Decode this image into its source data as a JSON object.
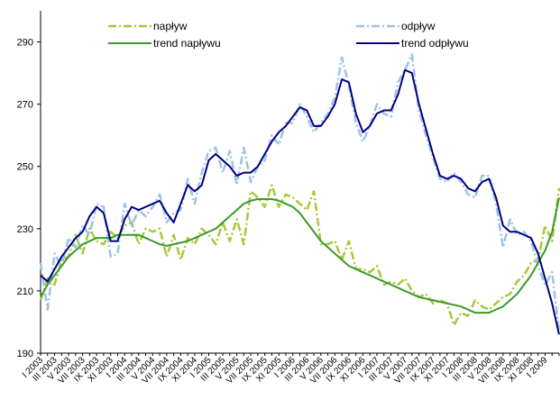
{
  "chart_data": {
    "type": "line",
    "categories": [
      "I 2003",
      null,
      "III 2003",
      null,
      "V 2003",
      null,
      "VII 2003",
      null,
      "IX 2003",
      null,
      "XI 2003",
      null,
      "I 2004",
      null,
      "III 2004",
      null,
      "V 2004",
      null,
      "VII 2004",
      null,
      "IX 2004",
      null,
      "XI 2004",
      null,
      "I 2005",
      null,
      "III 2005",
      null,
      "V 2005",
      null,
      "VII 2005",
      null,
      "IX 2005",
      null,
      "XI 2005",
      null,
      "I 2006",
      null,
      "III 2006",
      null,
      "V 2006",
      null,
      "VII 2006",
      null,
      "IX 2006",
      null,
      "XI 2006",
      null,
      "I 2007",
      null,
      "III 2007",
      null,
      "V 2007",
      null,
      "VII 2007",
      null,
      "IX 2007",
      null,
      "XI 2007",
      null,
      "I 2008",
      null,
      "III 2008",
      null,
      "V 2008",
      null,
      "VII 2008",
      null,
      "IX 2008",
      null,
      "XI 2008",
      null,
      "I 2009",
      null,
      null
    ],
    "series": [
      {
        "name": "napływ",
        "color": "#a8c83c",
        "style": "dashed",
        "values": [
          207,
          214,
          212,
          220,
          221,
          228,
          222,
          230,
          226,
          225,
          229,
          227,
          231,
          232,
          225,
          230,
          229,
          230,
          221,
          228,
          220,
          227,
          225,
          230,
          228,
          225,
          232,
          226,
          233,
          225,
          242,
          240,
          237,
          244,
          237,
          241,
          240,
          238,
          236,
          242,
          225,
          225,
          226,
          220,
          226,
          217,
          217,
          216,
          218,
          212,
          213,
          212,
          214,
          210,
          208,
          209,
          206,
          207,
          206,
          199,
          203,
          202,
          207,
          205,
          204,
          206,
          208,
          209,
          213,
          215,
          219,
          220,
          231,
          226,
          243
        ]
      },
      {
        "name": "odpływ",
        "color": "#9cc3e6",
        "style": "dashed",
        "values": [
          219,
          204,
          222,
          218,
          227,
          224,
          231,
          228,
          238,
          237,
          221,
          222,
          238,
          231,
          236,
          234,
          237,
          241,
          232,
          235,
          236,
          246,
          238,
          248,
          255,
          256,
          248,
          255,
          244,
          256,
          245,
          250,
          252,
          260,
          257,
          264,
          264,
          270,
          266,
          261,
          264,
          267,
          272,
          285,
          276,
          264,
          258,
          263,
          270,
          267,
          266,
          277,
          281,
          286,
          268,
          260,
          253,
          246,
          245,
          248,
          245,
          241,
          240,
          247,
          247,
          238,
          224,
          233,
          228,
          229,
          226,
          218,
          212,
          216,
          197
        ]
      },
      {
        "name": "trend napływu",
        "color": "#3a9a2a",
        "style": "solid",
        "values": [
          208,
          212,
          215,
          218,
          221,
          223,
          225,
          226,
          227,
          227,
          227,
          228,
          228,
          228,
          228,
          227,
          226,
          225,
          224.5,
          225,
          225.5,
          226,
          227,
          228,
          229,
          230,
          232,
          234,
          236,
          238,
          239,
          239.5,
          239.5,
          239.5,
          239,
          238,
          237,
          235,
          232,
          229,
          226,
          224,
          222,
          220,
          218,
          217,
          216,
          215,
          214,
          213,
          212,
          211,
          210,
          209,
          208,
          207.5,
          207,
          206.5,
          206,
          205.5,
          205,
          204,
          203,
          203,
          203,
          204,
          205,
          207,
          209,
          212,
          215,
          219,
          223,
          229,
          240
        ]
      },
      {
        "name": "trend odpływu",
        "color": "#000080",
        "style": "solid",
        "values": [
          215,
          213,
          217,
          221,
          224,
          227,
          229,
          234,
          237,
          235,
          226,
          226,
          233,
          237,
          236,
          237,
          238,
          239,
          235,
          232,
          238,
          244,
          242,
          244,
          252,
          254,
          252,
          250,
          247,
          248,
          248,
          250,
          254,
          258,
          261,
          263,
          266,
          269,
          268,
          263,
          263,
          266,
          270,
          278,
          277,
          267,
          261,
          263,
          267,
          268,
          268,
          273,
          281,
          280,
          270,
          262,
          254,
          247,
          246,
          247,
          246,
          243,
          242,
          245,
          246,
          240,
          231,
          229,
          229,
          228,
          227,
          222,
          214,
          206,
          196
        ]
      }
    ],
    "ylim": [
      190,
      300
    ],
    "yticks": [
      190,
      210,
      230,
      250,
      270,
      290
    ],
    "legend": "top"
  }
}
